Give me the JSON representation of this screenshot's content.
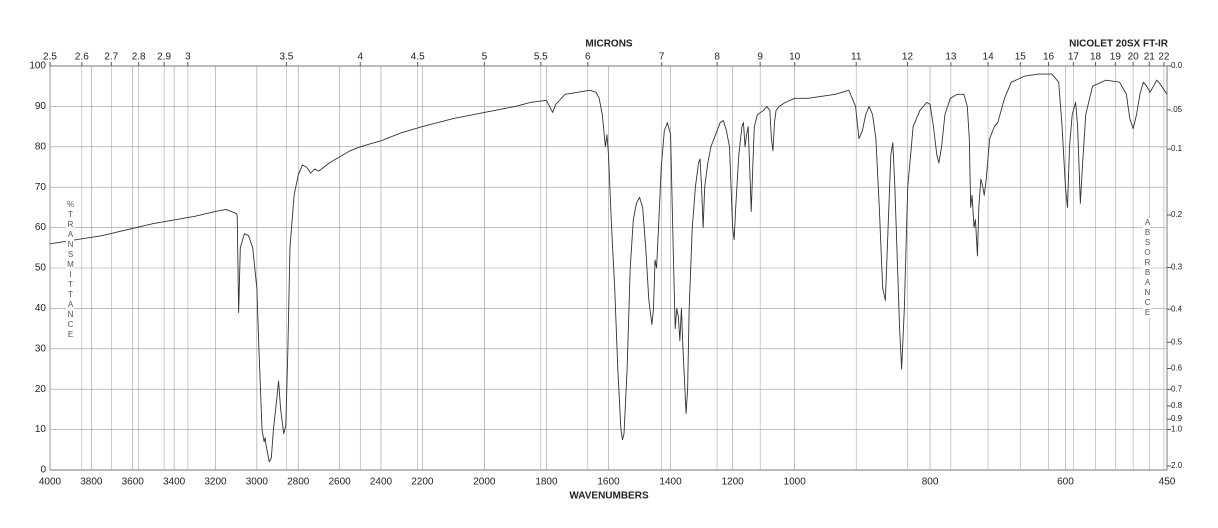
{
  "chart_data": {
    "type": "line",
    "title": "MICRONS",
    "subtitle": "NICOLET 20SX FT-IR",
    "x_label": "WAVENUMBERS",
    "y_label": "%TRANSMITTANCE",
    "y2_label": "ABSORBANCE",
    "xlim": [
      4000,
      450
    ],
    "xticks": [
      4000,
      3800,
      3600,
      3400,
      3200,
      3000,
      2800,
      2600,
      2400,
      2200,
      2000,
      1800,
      1600,
      1400,
      1200,
      1000,
      800,
      600,
      450
    ],
    "x2ticks": [
      2.5,
      2.6,
      2.7,
      2.8,
      2.9,
      3,
      3.5,
      4,
      4.5,
      5,
      5.5,
      6,
      7,
      8,
      9,
      10,
      11,
      12,
      13,
      14,
      15,
      16,
      17,
      18,
      19,
      20,
      21,
      22
    ],
    "ylim": [
      0,
      100
    ],
    "yticks": [
      0,
      10,
      20,
      30,
      40,
      50,
      60,
      70,
      80,
      90,
      100
    ],
    "y2ticks": [
      {
        "value": 0,
        "label": "0.0"
      },
      {
        "value": 0.05,
        "label": ".05"
      },
      0.1,
      0.2,
      0.3,
      0.4,
      0.5,
      0.6,
      0.7,
      0.8,
      0.9,
      {
        "value": 1,
        "label": "1.0"
      },
      {
        "value": 2,
        "label": "2.0"
      }
    ],
    "grid": true,
    "series": [
      {
        "color": "#333333",
        "x": [
          4000,
          3750,
          3500,
          3300,
          3200,
          3150,
          3100,
          3095,
          3088,
          3080,
          3060,
          3040,
          3020,
          3000,
          2990,
          2975,
          2965,
          2960,
          2955,
          2940,
          2930,
          2920,
          2905,
          2895,
          2885,
          2870,
          2860,
          2850,
          2840,
          2820,
          2800,
          2780,
          2760,
          2740,
          2720,
          2700,
          2650,
          2600,
          2550,
          2500,
          2400,
          2300,
          2200,
          2100,
          2000,
          1900,
          1850,
          1800,
          1780,
          1770,
          1740,
          1700,
          1660,
          1640,
          1630,
          1620,
          1610,
          1605,
          1600,
          1590,
          1580,
          1570,
          1560,
          1555,
          1550,
          1540,
          1530,
          1520,
          1510,
          1500,
          1490,
          1480,
          1470,
          1460,
          1455,
          1450,
          1445,
          1440,
          1430,
          1420,
          1410,
          1400,
          1390,
          1385,
          1380,
          1375,
          1370,
          1365,
          1360,
          1355,
          1350,
          1345,
          1340,
          1330,
          1320,
          1310,
          1305,
          1300,
          1295,
          1290,
          1280,
          1270,
          1260,
          1250,
          1240,
          1230,
          1220,
          1210,
          1205,
          1200,
          1195,
          1190,
          1180,
          1170,
          1165,
          1160,
          1155,
          1150,
          1145,
          1140,
          1135,
          1130,
          1120,
          1100,
          1090,
          1080,
          1075,
          1070,
          1065,
          1060,
          1050,
          1030,
          1000,
          980,
          960,
          940,
          920,
          910,
          905,
          900,
          895,
          890,
          885,
          880,
          875,
          870,
          866,
          862,
          858,
          855,
          852,
          848,
          845,
          842,
          838,
          833,
          825,
          815,
          805,
          800,
          795,
          790,
          787,
          783,
          778,
          770,
          760,
          750,
          745,
          742,
          740,
          738,
          735,
          733,
          730,
          728,
          725,
          722,
          720,
          717,
          712,
          705,
          700,
          690,
          680,
          660,
          640,
          620,
          610,
          605,
          600,
          597,
          594,
          590,
          585,
          582,
          578,
          575,
          570,
          560,
          540,
          520,
          510,
          505,
          500,
          495,
          490,
          485,
          480,
          475,
          470,
          465,
          460,
          450
        ],
        "values": [
          56,
          58,
          61,
          62.8,
          64,
          64.5,
          63.5,
          63,
          39,
          55,
          58.5,
          58,
          55,
          45,
          30,
          10,
          7,
          8,
          6,
          2,
          3,
          10,
          17,
          22,
          15,
          9,
          11,
          30,
          55,
          68,
          73,
          75.5,
          75,
          73.5,
          74.5,
          74,
          76,
          77.5,
          79,
          80,
          81.5,
          83.5,
          85,
          87,
          88.5,
          90,
          91,
          91.5,
          88.5,
          90.5,
          93,
          93.5,
          94,
          93.5,
          92,
          88,
          80,
          83,
          78,
          60,
          45,
          25,
          10,
          7.5,
          9,
          25,
          50,
          62,
          66,
          67.5,
          65,
          55,
          42,
          36,
          40,
          52,
          50,
          58,
          75,
          84,
          86,
          83,
          50,
          35,
          40,
          38,
          32,
          40,
          30,
          22,
          14,
          20,
          40,
          60,
          70,
          76,
          77,
          70,
          60,
          70,
          76,
          80,
          82,
          84,
          86,
          86.5,
          84,
          80,
          70,
          60,
          57,
          65,
          78,
          85,
          86,
          80,
          83,
          85,
          75,
          64,
          75,
          85,
          88,
          89,
          90,
          89,
          82,
          79,
          86,
          89,
          90,
          91,
          92,
          92,
          92.5,
          93,
          94,
          90,
          82,
          84,
          88,
          90,
          88,
          82,
          65,
          45,
          42,
          60,
          78,
          81,
          70,
          50,
          35,
          25,
          40,
          70,
          85,
          89,
          91,
          90.5,
          85,
          78,
          76,
          80,
          88,
          92,
          93,
          93,
          90,
          82,
          65,
          68,
          60,
          62,
          53,
          65,
          72,
          70,
          68,
          72,
          82,
          85,
          86,
          92,
          96,
          97.5,
          98,
          98,
          96,
          85,
          70,
          65,
          80,
          88,
          91,
          85,
          66,
          75,
          88,
          95,
          96.5,
          96,
          93,
          87,
          84.5,
          88,
          93,
          96,
          95,
          93.5,
          95,
          96.5,
          95.5,
          93
        ]
      }
    ]
  }
}
